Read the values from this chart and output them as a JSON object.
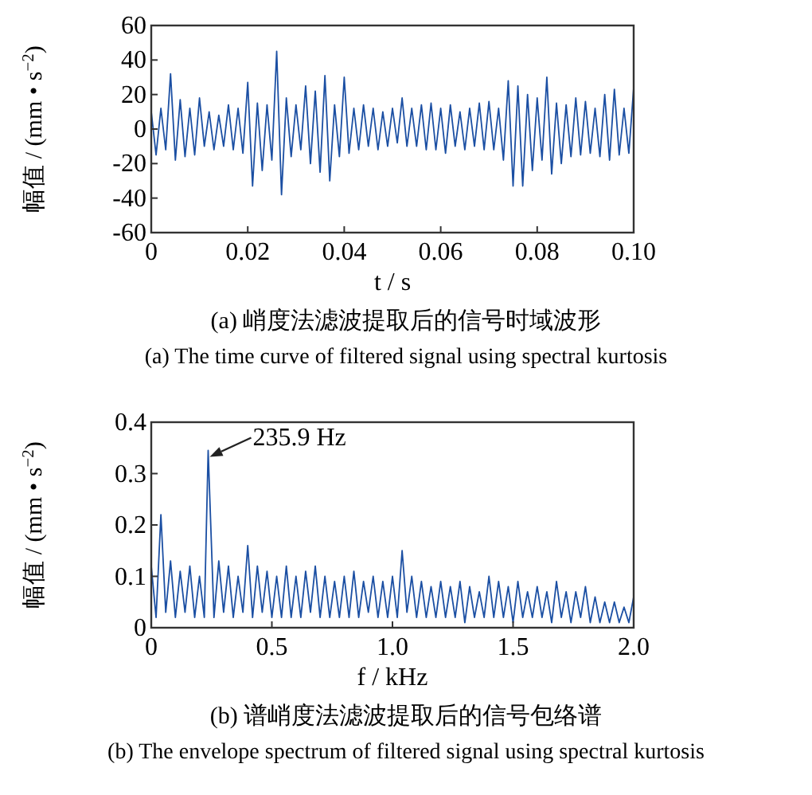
{
  "chart_data": [
    {
      "type": "line",
      "title": "(a)  峭度法滤波提取后的信号时域波形",
      "subtitle": "(a)  The time curve of filtered signal using spectral kurtosis",
      "xlabel": "t / s",
      "ylabel": "幅值 / (mm • s$^{−2}$)",
      "color": "#1b4fa3",
      "x": [
        0,
        0.001,
        0.002,
        0.003,
        0.004,
        0.005,
        0.006,
        0.007,
        0.008,
        0.009,
        0.01,
        0.011,
        0.012,
        0.013,
        0.014,
        0.015,
        0.016,
        0.017,
        0.018,
        0.019,
        0.02,
        0.021,
        0.022,
        0.023,
        0.024,
        0.025,
        0.026,
        0.027,
        0.028,
        0.029,
        0.03,
        0.031,
        0.032,
        0.033,
        0.034,
        0.035,
        0.036,
        0.037,
        0.038,
        0.039,
        0.04,
        0.041,
        0.042,
        0.043,
        0.044,
        0.045,
        0.046,
        0.047,
        0.048,
        0.049,
        0.05,
        0.051,
        0.052,
        0.053,
        0.054,
        0.055,
        0.056,
        0.057,
        0.058,
        0.059,
        0.06,
        0.061,
        0.062,
        0.063,
        0.064,
        0.065,
        0.066,
        0.067,
        0.068,
        0.069,
        0.07,
        0.071,
        0.072,
        0.073,
        0.074,
        0.075,
        0.076,
        0.077,
        0.078,
        0.079,
        0.08,
        0.081,
        0.082,
        0.083,
        0.084,
        0.085,
        0.086,
        0.087,
        0.088,
        0.089,
        0.09,
        0.091,
        0.092,
        0.093,
        0.094,
        0.095,
        0.096,
        0.097,
        0.098,
        0.099,
        0.1
      ],
      "values": [
        10,
        -15,
        12,
        -12,
        32,
        -18,
        17,
        -16,
        12,
        -15,
        18,
        -10,
        10,
        -12,
        8,
        -10,
        14,
        -12,
        12,
        -14,
        27,
        -33,
        15,
        -24,
        14,
        -18,
        45,
        -38,
        18,
        -16,
        14,
        -12,
        25,
        -20,
        22,
        -25,
        31,
        -30,
        14,
        -16,
        30,
        -14,
        12,
        -12,
        14,
        -10,
        12,
        -12,
        10,
        -10,
        12,
        -8,
        18,
        -10,
        12,
        -10,
        14,
        -12,
        15,
        -12,
        12,
        -14,
        14,
        -10,
        10,
        -12,
        12,
        -10,
        15,
        -12,
        16,
        -12,
        12,
        -18,
        28,
        -33,
        25,
        -33,
        20,
        -24,
        18,
        -18,
        30,
        -26,
        15,
        -20,
        14,
        -16,
        18,
        -15,
        16,
        -14,
        12,
        -16,
        20,
        -18,
        23,
        -15,
        12,
        -14,
        24
      ],
      "xlim": [
        0,
        0.1
      ],
      "ylim": [
        -60,
        60
      ],
      "xticks": [
        0,
        0.02,
        0.04,
        0.06,
        0.08,
        {
          "value": 0.1,
          "label": "0.10"
        }
      ],
      "yticks": [
        -60,
        -40,
        -20,
        0,
        20,
        40,
        60
      ]
    },
    {
      "type": "line",
      "title": "(b)  谱峭度法滤波提取后的信号包络谱",
      "subtitle": "(b)  The envelope spectrum of filtered signal using spectral kurtosis",
      "xlabel": "f / kHz",
      "ylabel": "幅值 / (mm • s$^{−2}$)",
      "color": "#1b4fa3",
      "x": [
        0,
        0.02,
        0.04,
        0.06,
        0.08,
        0.1,
        0.12,
        0.14,
        0.16,
        0.18,
        0.2,
        0.22,
        0.2359,
        0.26,
        0.28,
        0.3,
        0.32,
        0.34,
        0.36,
        0.38,
        0.4,
        0.42,
        0.44,
        0.46,
        0.48,
        0.5,
        0.52,
        0.54,
        0.56,
        0.58,
        0.6,
        0.62,
        0.64,
        0.66,
        0.68,
        0.7,
        0.72,
        0.74,
        0.76,
        0.78,
        0.8,
        0.82,
        0.84,
        0.86,
        0.88,
        0.9,
        0.92,
        0.94,
        0.96,
        0.98,
        1,
        1.02,
        1.04,
        1.06,
        1.08,
        1.1,
        1.12,
        1.14,
        1.16,
        1.18,
        1.2,
        1.22,
        1.24,
        1.26,
        1.28,
        1.3,
        1.32,
        1.34,
        1.36,
        1.38,
        1.4,
        1.42,
        1.44,
        1.46,
        1.48,
        1.5,
        1.52,
        1.54,
        1.56,
        1.58,
        1.6,
        1.62,
        1.64,
        1.66,
        1.68,
        1.7,
        1.72,
        1.74,
        1.76,
        1.78,
        1.8,
        1.82,
        1.84,
        1.86,
        1.88,
        1.9,
        1.92,
        1.94,
        1.96,
        1.98,
        2
      ],
      "values": [
        0.12,
        0.02,
        0.22,
        0.03,
        0.13,
        0.02,
        0.11,
        0.03,
        0.12,
        0.02,
        0.1,
        0.02,
        0.345,
        0.02,
        0.13,
        0.03,
        0.12,
        0.02,
        0.1,
        0.03,
        0.16,
        0.02,
        0.12,
        0.03,
        0.11,
        0.02,
        0.1,
        0.02,
        0.12,
        0.02,
        0.1,
        0.02,
        0.11,
        0.03,
        0.12,
        0.02,
        0.1,
        0.02,
        0.09,
        0.02,
        0.1,
        0.02,
        0.11,
        0.02,
        0.09,
        0.03,
        0.1,
        0.02,
        0.09,
        0.02,
        0.1,
        0.02,
        0.15,
        0.03,
        0.1,
        0.02,
        0.09,
        0.02,
        0.08,
        0.02,
        0.09,
        0.02,
        0.08,
        0.02,
        0.09,
        0.01,
        0.08,
        0.02,
        0.07,
        0.02,
        0.1,
        0.02,
        0.09,
        0.02,
        0.08,
        0.01,
        0.09,
        0.02,
        0.07,
        0.02,
        0.08,
        0.02,
        0.07,
        0.01,
        0.09,
        0.02,
        0.07,
        0.01,
        0.07,
        0.02,
        0.08,
        0.01,
        0.06,
        0.01,
        0.05,
        0.01,
        0.05,
        0.01,
        0.04,
        0.01,
        0.06
      ],
      "xlim": [
        0,
        2
      ],
      "ylim": [
        0,
        0.4
      ],
      "xticks": [
        0,
        0.5,
        {
          "value": 1,
          "label": "1.0"
        },
        1.5,
        {
          "value": 2,
          "label": "2.0"
        }
      ],
      "yticks": [
        0,
        0.1,
        0.2,
        0.3,
        0.4
      ],
      "annotations": [
        {
          "text": "235.9 Hz",
          "x": 0.2359,
          "y": 0.345
        }
      ]
    }
  ]
}
